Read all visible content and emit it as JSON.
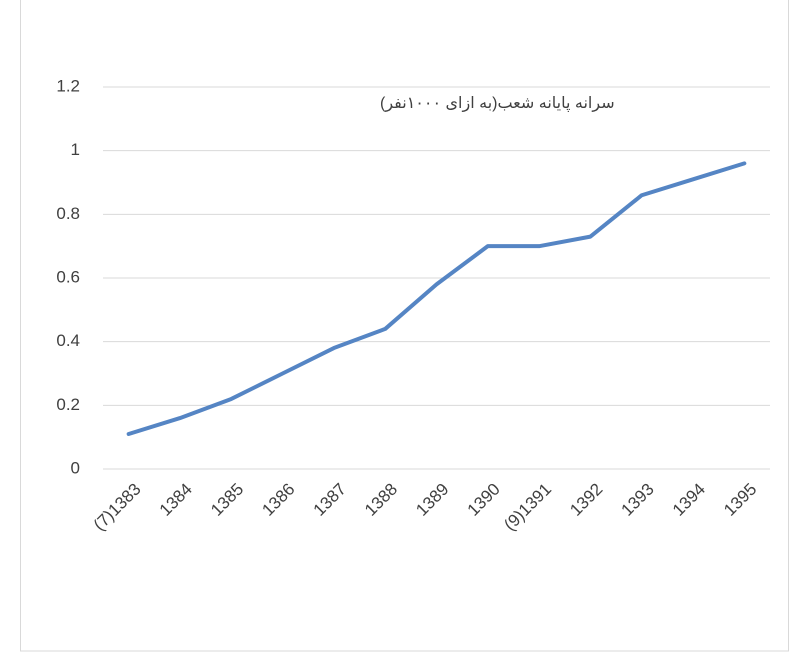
{
  "chart_data": {
    "type": "line",
    "title": "سرانه پایانه شعب(به ازای ۱۰۰۰نفر)",
    "categories": [
      "(7)1383",
      "1384",
      "1385",
      "1386",
      "1387",
      "1388",
      "1389",
      "1390",
      "(9)1391",
      "1392",
      "1393",
      "1394",
      "1395"
    ],
    "values": [
      0.11,
      0.16,
      0.22,
      0.3,
      0.38,
      0.44,
      0.58,
      0.7,
      0.7,
      0.73,
      0.86,
      0.91,
      0.96
    ],
    "color": "#5585c4",
    "ylim": [
      0,
      1.2
    ],
    "yticks": [
      0,
      0.2,
      0.4,
      0.6,
      0.8,
      1,
      1.2
    ],
    "grid": true
  }
}
